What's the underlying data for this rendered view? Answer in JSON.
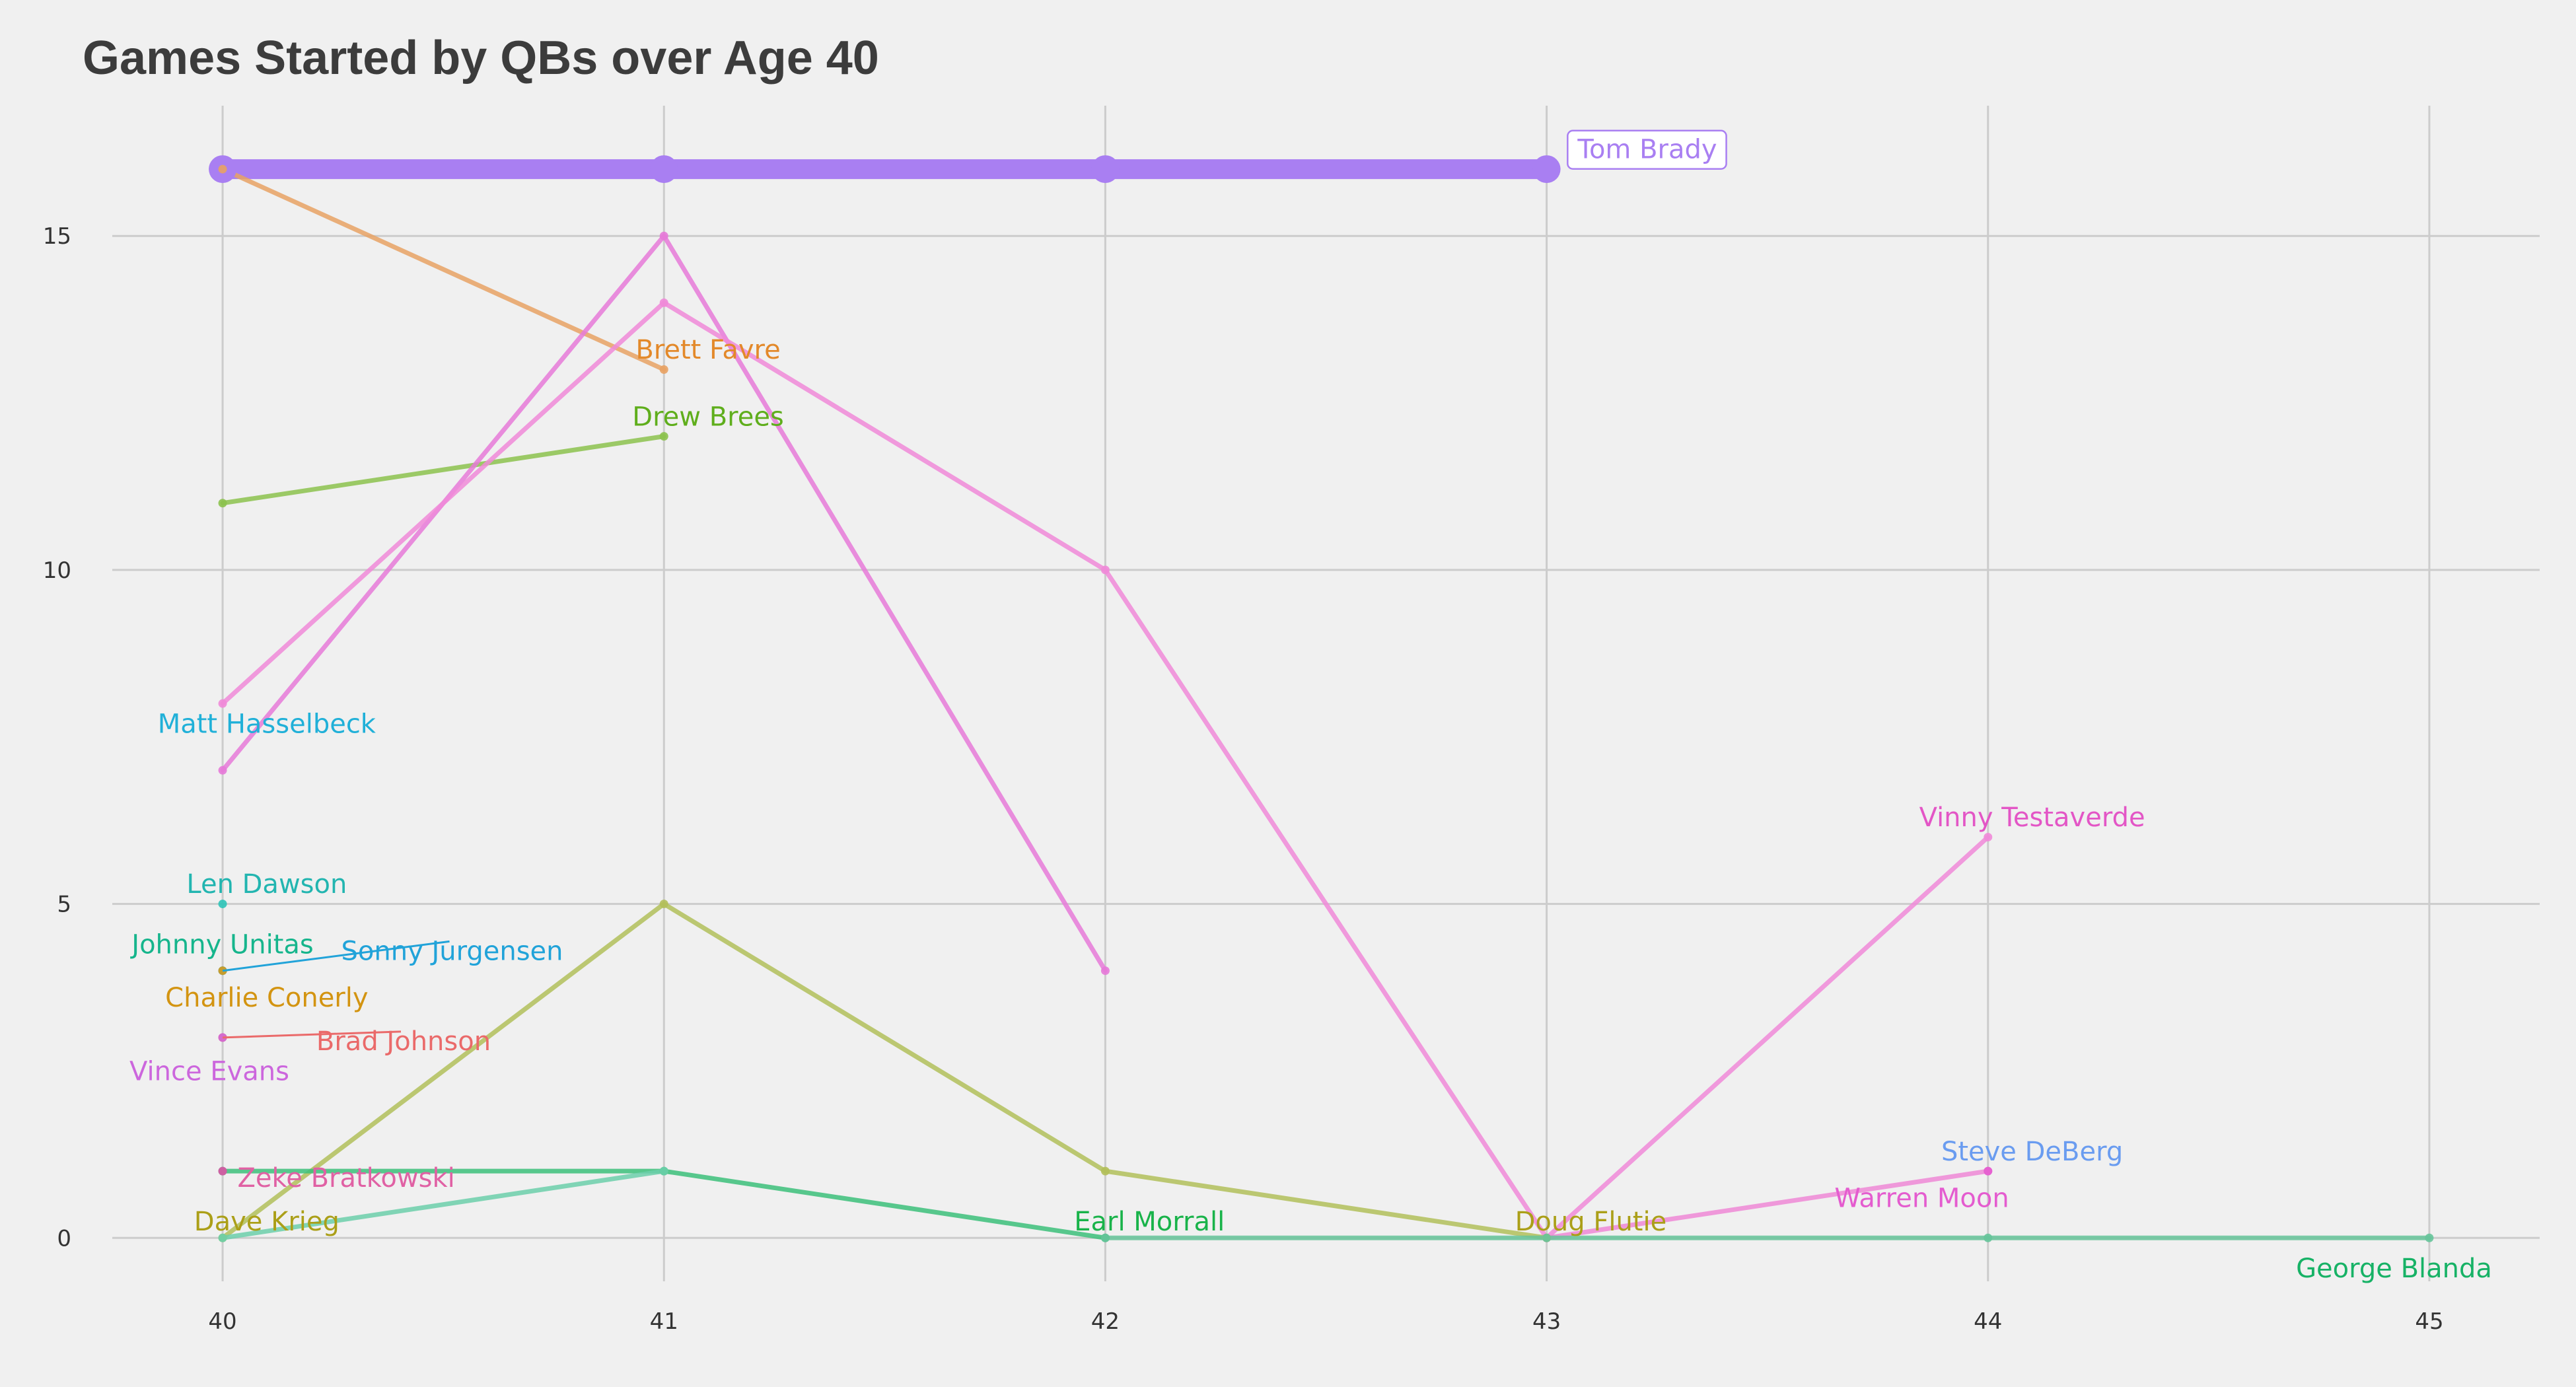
{
  "chart_data": {
    "type": "line",
    "title": "Games Started by QBs over Age 40",
    "xlabel": "",
    "ylabel": "",
    "xlim": [
      39.75,
      45.25
    ],
    "ylim": [
      -0.65,
      16.95
    ],
    "x_ticks": [
      "40",
      "41",
      "42",
      "43",
      "44",
      "45"
    ],
    "y_ticks": [
      "0",
      "5",
      "10",
      "15"
    ],
    "grid": true,
    "legend": "none",
    "series": [
      {
        "name": "Tom Brady",
        "color": "#a97ff2",
        "highlight": true,
        "x": [
          40,
          41,
          42,
          43
        ],
        "y": [
          16,
          16,
          16,
          16
        ]
      },
      {
        "name": "Brett Favre",
        "color": "#e8a264",
        "x": [
          40,
          41
        ],
        "y": [
          16,
          13
        ]
      },
      {
        "name": "Drew Brees",
        "color": "#8cc24e",
        "x": [
          40,
          41
        ],
        "y": [
          11,
          12
        ]
      },
      {
        "name": "Matt Hasselbeck",
        "color": "#e67ad8",
        "x": [
          40,
          41,
          42
        ],
        "y": [
          7,
          15,
          4
        ]
      },
      {
        "name": "Vinny Testaverde",
        "color": "#f08ad8",
        "x": [
          40,
          41,
          42,
          43,
          44
        ],
        "y": [
          8,
          14,
          10,
          0,
          6
        ]
      },
      {
        "name": "Steve DeBerg",
        "color": "#ee88d6",
        "x": [
          43,
          44
        ],
        "y": [
          0,
          1
        ]
      },
      {
        "name": "Doug Flutie",
        "color": "#b2bf5a",
        "x": [
          40,
          41,
          42,
          43
        ],
        "y": [
          0,
          5,
          1,
          0
        ]
      },
      {
        "name": "Earl Morrall",
        "color": "#3cbf7a",
        "x": [
          40,
          41,
          42
        ],
        "y": [
          1,
          1,
          0
        ]
      },
      {
        "name": "Dave Krieg",
        "color": "#6ccfaa",
        "x": [
          40,
          41
        ],
        "y": [
          0,
          1
        ]
      },
      {
        "name": "George Blanda",
        "color": "#66c49a",
        "x": [
          42,
          43,
          44,
          45
        ],
        "y": [
          0,
          0,
          0,
          0
        ]
      },
      {
        "name": "Len Dawson",
        "color": "#2ec4b8",
        "x": [
          40
        ],
        "y": [
          5
        ]
      },
      {
        "name": "Johnny Unitas",
        "color": "#21b0d9",
        "x": [
          40
        ],
        "y": [
          4
        ]
      },
      {
        "name": "Sonny Jurgensen",
        "color": "#21b0d9",
        "x": [
          40
        ],
        "y": [
          4
        ]
      },
      {
        "name": "Charlie Conerly",
        "color": "#d99a1a",
        "x": [
          40
        ],
        "y": [
          4
        ]
      },
      {
        "name": "Brad Johnson",
        "color": "#e8607a",
        "x": [
          40
        ],
        "y": [
          3
        ]
      },
      {
        "name": "Vince Evans",
        "color": "#d16ad6",
        "x": [
          40
        ],
        "y": [
          3
        ]
      },
      {
        "name": "Zeke Bratkowski",
        "color": "#dd55a6",
        "x": [
          40
        ],
        "y": [
          1
        ]
      },
      {
        "name": "Warren Moon",
        "color": "#e45ccf",
        "x": [
          44
        ],
        "y": [
          1
        ]
      }
    ],
    "annotations": [
      {
        "text": "Tom Brady",
        "color": "#a97ff2",
        "x": 43.04,
        "y": 16.3,
        "boxed": true
      },
      {
        "text": "Brett Favre",
        "color": "#e3892a",
        "x": 41.1,
        "y": 13.3
      },
      {
        "text": "Drew Brees",
        "color": "#5fae1c",
        "x": 41.1,
        "y": 12.3
      },
      {
        "text": "Matt Hasselbeck",
        "color": "#20b0d8",
        "x": 40.1,
        "y": 7.7
      },
      {
        "text": "Vinny Testaverde",
        "color": "#e356c6",
        "x": 44.1,
        "y": 6.3
      },
      {
        "text": "Len Dawson",
        "color": "#22b5b0",
        "x": 40.1,
        "y": 5.3
      },
      {
        "text": "Johnny Unitas",
        "color": "#16b58c",
        "x": 40.0,
        "y": 4.4
      },
      {
        "text": "Sonny Jurgensen",
        "color": "#21a3d9",
        "x": 40.52,
        "y": 4.3,
        "leader_from": [
          40,
          4
        ]
      },
      {
        "text": "Charlie Conerly",
        "color": "#d39411",
        "x": 40.1,
        "y": 3.6
      },
      {
        "text": "Brad Johnson",
        "color": "#ea6a6a",
        "x": 40.41,
        "y": 2.95,
        "leader_from": [
          40,
          3
        ]
      },
      {
        "text": "Vince Evans",
        "color": "#cc66dd",
        "x": 39.97,
        "y": 2.5
      },
      {
        "text": "Zeke Bratkowski",
        "color": "#e061a4",
        "x": 40.28,
        "y": 0.9
      },
      {
        "text": "Dave Krieg",
        "color": "#ab9f18",
        "x": 40.1,
        "y": 0.25
      },
      {
        "text": "Earl Morrall",
        "color": "#19b34a",
        "x": 42.1,
        "y": 0.25
      },
      {
        "text": "Doug Flutie",
        "color": "#ab9f18",
        "x": 43.1,
        "y": 0.25
      },
      {
        "text": "Steve DeBerg",
        "color": "#6a9cf0",
        "x": 44.1,
        "y": 1.3
      },
      {
        "text": "Warren Moon",
        "color": "#e45ccf",
        "x": 43.85,
        "y": 0.6
      },
      {
        "text": "George Blanda",
        "color": "#17b266",
        "x": 44.92,
        "y": -0.45
      }
    ]
  }
}
